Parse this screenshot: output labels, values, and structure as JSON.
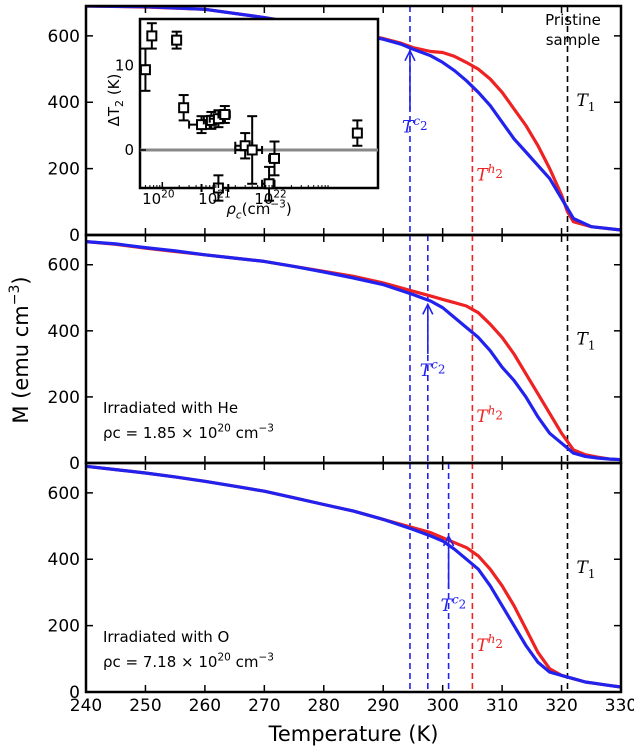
{
  "chart_data": {
    "type": "line",
    "ylabel_tex": [
      "M (emu cm",
      "−3",
      ")"
    ],
    "xlabel": "Temperature (K)",
    "xlim": [
      240,
      330
    ],
    "x_ticks": [
      "240",
      "250",
      "260",
      "270",
      "280",
      "290",
      "300",
      "310",
      "320",
      "330"
    ],
    "panels": [
      {
        "id": "pristine",
        "ylim": [
          0,
          690
        ],
        "y_ticks": [
          "0",
          "200",
          "400",
          "600"
        ],
        "annotation_lines": [
          "Pristine",
          "sample"
        ],
        "T1": 321,
        "T2h": 305,
        "T2c_list": [
          294.5
        ],
        "T2c_arrow": {
          "x": 294.5,
          "tip_y": 555,
          "tail_y": 375
        },
        "series": [
          {
            "name": "red",
            "color": "#ee2222",
            "x": [
              240,
              250,
              260,
              270,
              280,
              285,
              290,
              293,
              295,
              298,
              300,
              302,
              304,
              306,
              308,
              310,
              312,
              314,
              316,
              318,
              320,
              321,
              322,
              325,
              330
            ],
            "y": [
              690,
              687,
              680,
              655,
              625,
              610,
              592,
              578,
              565,
              553,
              550,
              538,
              520,
              500,
              470,
              430,
              380,
              330,
              270,
              200,
              120,
              70,
              40,
              25,
              15
            ]
          },
          {
            "name": "blue",
            "color": "#2222ee",
            "x": [
              240,
              250,
              260,
              270,
              280,
              285,
              290,
              293,
              295,
              298,
              300,
              302,
              304,
              306,
              308,
              310,
              312,
              314,
              316,
              318,
              320,
              322,
              325,
              330
            ],
            "y": [
              690,
              688,
              680,
              655,
              625,
              610,
              590,
              575,
              560,
              540,
              520,
              495,
              465,
              430,
              390,
              340,
              290,
              250,
              210,
              170,
              110,
              50,
              25,
              15
            ]
          }
        ]
      },
      {
        "id": "he",
        "ylim": [
          0,
          690
        ],
        "y_ticks": [
          "0",
          "200",
          "400",
          "600"
        ],
        "annotation_lines": [
          "Irradiated with He",
          "ρc = 1.85 × 10",
          "20",
          " cm",
          "−3"
        ],
        "T1": 321,
        "T2h": 305,
        "T2c_list": [
          294.5,
          297.5
        ],
        "T2c_arrow": {
          "x": 297.5,
          "tip_y": 480,
          "tail_y": 330
        },
        "series": [
          {
            "name": "red",
            "color": "#ee2222",
            "x": [
              240,
              245,
              250,
              255,
              260,
              265,
              270,
              275,
              280,
              285,
              290,
              295,
              298,
              300,
              302,
              304,
              306,
              308,
              310,
              312,
              314,
              316,
              318,
              320,
              322,
              324,
              326,
              328,
              330
            ],
            "y": [
              670,
              662,
              650,
              640,
              630,
              620,
              610,
              595,
              580,
              565,
              545,
              520,
              505,
              495,
              485,
              475,
              455,
              420,
              380,
              330,
              270,
              210,
              150,
              90,
              40,
              25,
              18,
              12,
              10
            ]
          },
          {
            "name": "blue",
            "color": "#2222ee",
            "x": [
              240,
              245,
              250,
              255,
              260,
              265,
              270,
              275,
              280,
              285,
              290,
              295,
              298,
              300,
              302,
              304,
              306,
              308,
              310,
              312,
              314,
              316,
              318,
              320,
              322,
              324,
              326,
              328,
              330
            ],
            "y": [
              670,
              663,
              652,
              642,
              630,
              620,
              610,
              595,
              578,
              560,
              540,
              510,
              490,
              470,
              440,
              410,
              380,
              340,
              290,
              250,
              200,
              140,
              90,
              60,
              30,
              20,
              15,
              12,
              10
            ]
          }
        ]
      },
      {
        "id": "o",
        "ylim": [
          0,
          690
        ],
        "y_ticks": [
          "0",
          "200",
          "400",
          "600"
        ],
        "annotation_lines": [
          "Irradiated with O",
          "ρc = 7.18 × 10",
          "20",
          " cm",
          "−3"
        ],
        "T1": 321,
        "T2h": 305,
        "T2c_list": [
          294.5,
          297.5,
          301
        ],
        "T2c_arrow": {
          "x": 301,
          "tip_y": 470,
          "tail_y": 310
        },
        "series": [
          {
            "name": "red",
            "color": "#ee2222",
            "x": [
              240,
              245,
              250,
              255,
              260,
              265,
              270,
              275,
              280,
              285,
              290,
              295,
              298,
              300,
              302,
              304,
              306,
              308,
              310,
              312,
              314,
              316,
              318,
              320,
              322,
              324,
              326,
              328,
              330
            ],
            "y": [
              680,
              670,
              660,
              648,
              635,
              620,
              605,
              585,
              565,
              545,
              520,
              495,
              480,
              465,
              450,
              435,
              410,
              370,
              320,
              260,
              190,
              120,
              70,
              50,
              40,
              30,
              25,
              20,
              15
            ]
          },
          {
            "name": "blue",
            "color": "#2222ee",
            "x": [
              240,
              245,
              250,
              255,
              260,
              265,
              270,
              275,
              280,
              285,
              290,
              295,
              298,
              300,
              302,
              304,
              306,
              308,
              310,
              312,
              314,
              316,
              318,
              320,
              322,
              324,
              326,
              328,
              330
            ],
            "y": [
              680,
              670,
              660,
              648,
              635,
              620,
              605,
              585,
              565,
              545,
              520,
              490,
              470,
              455,
              430,
              400,
              370,
              320,
              260,
              200,
              140,
              90,
              60,
              50,
              40,
              30,
              25,
              20,
              15
            ]
          }
        ]
      }
    ],
    "inset": {
      "xscale": "log",
      "xlim": [
        40000000000000000000,
        700000000000000000000000
      ],
      "ylim": [
        -4.5,
        15.5
      ],
      "x_ticks": [
        {
          "mant": "10",
          "exp": "20",
          "v": 100000000000000000000
        },
        {
          "mant": "10",
          "exp": "21",
          "v": 1000000000000000000000
        },
        {
          "mant": "10",
          "exp": "22",
          "v": 10000000000000000000000
        }
      ],
      "y_ticks": [
        "0",
        "10"
      ],
      "xlabel_parts": [
        "ρ",
        "c",
        "(cm",
        "−3",
        ")"
      ],
      "ylabel_parts": [
        "ΔT",
        "2",
        " (K)"
      ],
      "zero_line": 0,
      "points": [
        {
          "x": 50000000000000000000,
          "y": 9.5,
          "ye": 2.5,
          "xe": 0
        },
        {
          "x": 65000000000000000000,
          "y": 13.5,
          "ye": 1.5,
          "xe": 0
        },
        {
          "x": 180000000000000000000,
          "y": 13.0,
          "ye": 1.0,
          "xe": 30000000000000000000
        },
        {
          "x": 240000000000000000000,
          "y": 5.0,
          "ye": 1.5,
          "xe": 0
        },
        {
          "x": 500000000000000000000,
          "y": 3.0,
          "ye": 1.0,
          "xe": 200000000000000000000
        },
        {
          "x": 750000000000000000000,
          "y": 3.5,
          "ye": 1.0,
          "xe": 200000000000000000000
        },
        {
          "x": 1000000000000000000000,
          "y": 3.7,
          "ye": 1.0,
          "xe": 300000000000000000000
        },
        {
          "x": 1300000000000000000000,
          "y": 4.2,
          "ye": 1.0,
          "xe": 300000000000000000000
        },
        {
          "x": 1000000000000000000000,
          "y": -4.5,
          "ye": 1.5,
          "xe": 500000000000000000000
        },
        {
          "x": 3000000000000000000000,
          "y": 0.5,
          "ye": 1.5,
          "xe": 1000000000000000000000
        },
        {
          "x": 4000000000000000000000,
          "y": 0.0,
          "ye": 4.0,
          "xe": 2000000000000000000000
        },
        {
          "x": 8000000000000000000000,
          "y": -4.0,
          "ye": 2.0,
          "xe": 2000000000000000000000
        },
        {
          "x": 10000000000000000000000,
          "y": -1.0,
          "ye": 2.0,
          "xe": 2000000000000000000000
        },
        {
          "x": 300000000000000000000000,
          "y": 2.0,
          "ye": 1.5,
          "xe": 0
        }
      ]
    },
    "labels": {
      "T1": [
        "T",
        "1"
      ],
      "T2h": [
        "T",
        "2",
        "h"
      ],
      "T2c": [
        "T",
        "2",
        "c"
      ]
    },
    "colors": {
      "red": "#ee2222",
      "blue": "#2222ee",
      "black": "#000000",
      "gray": "#888888"
    }
  }
}
